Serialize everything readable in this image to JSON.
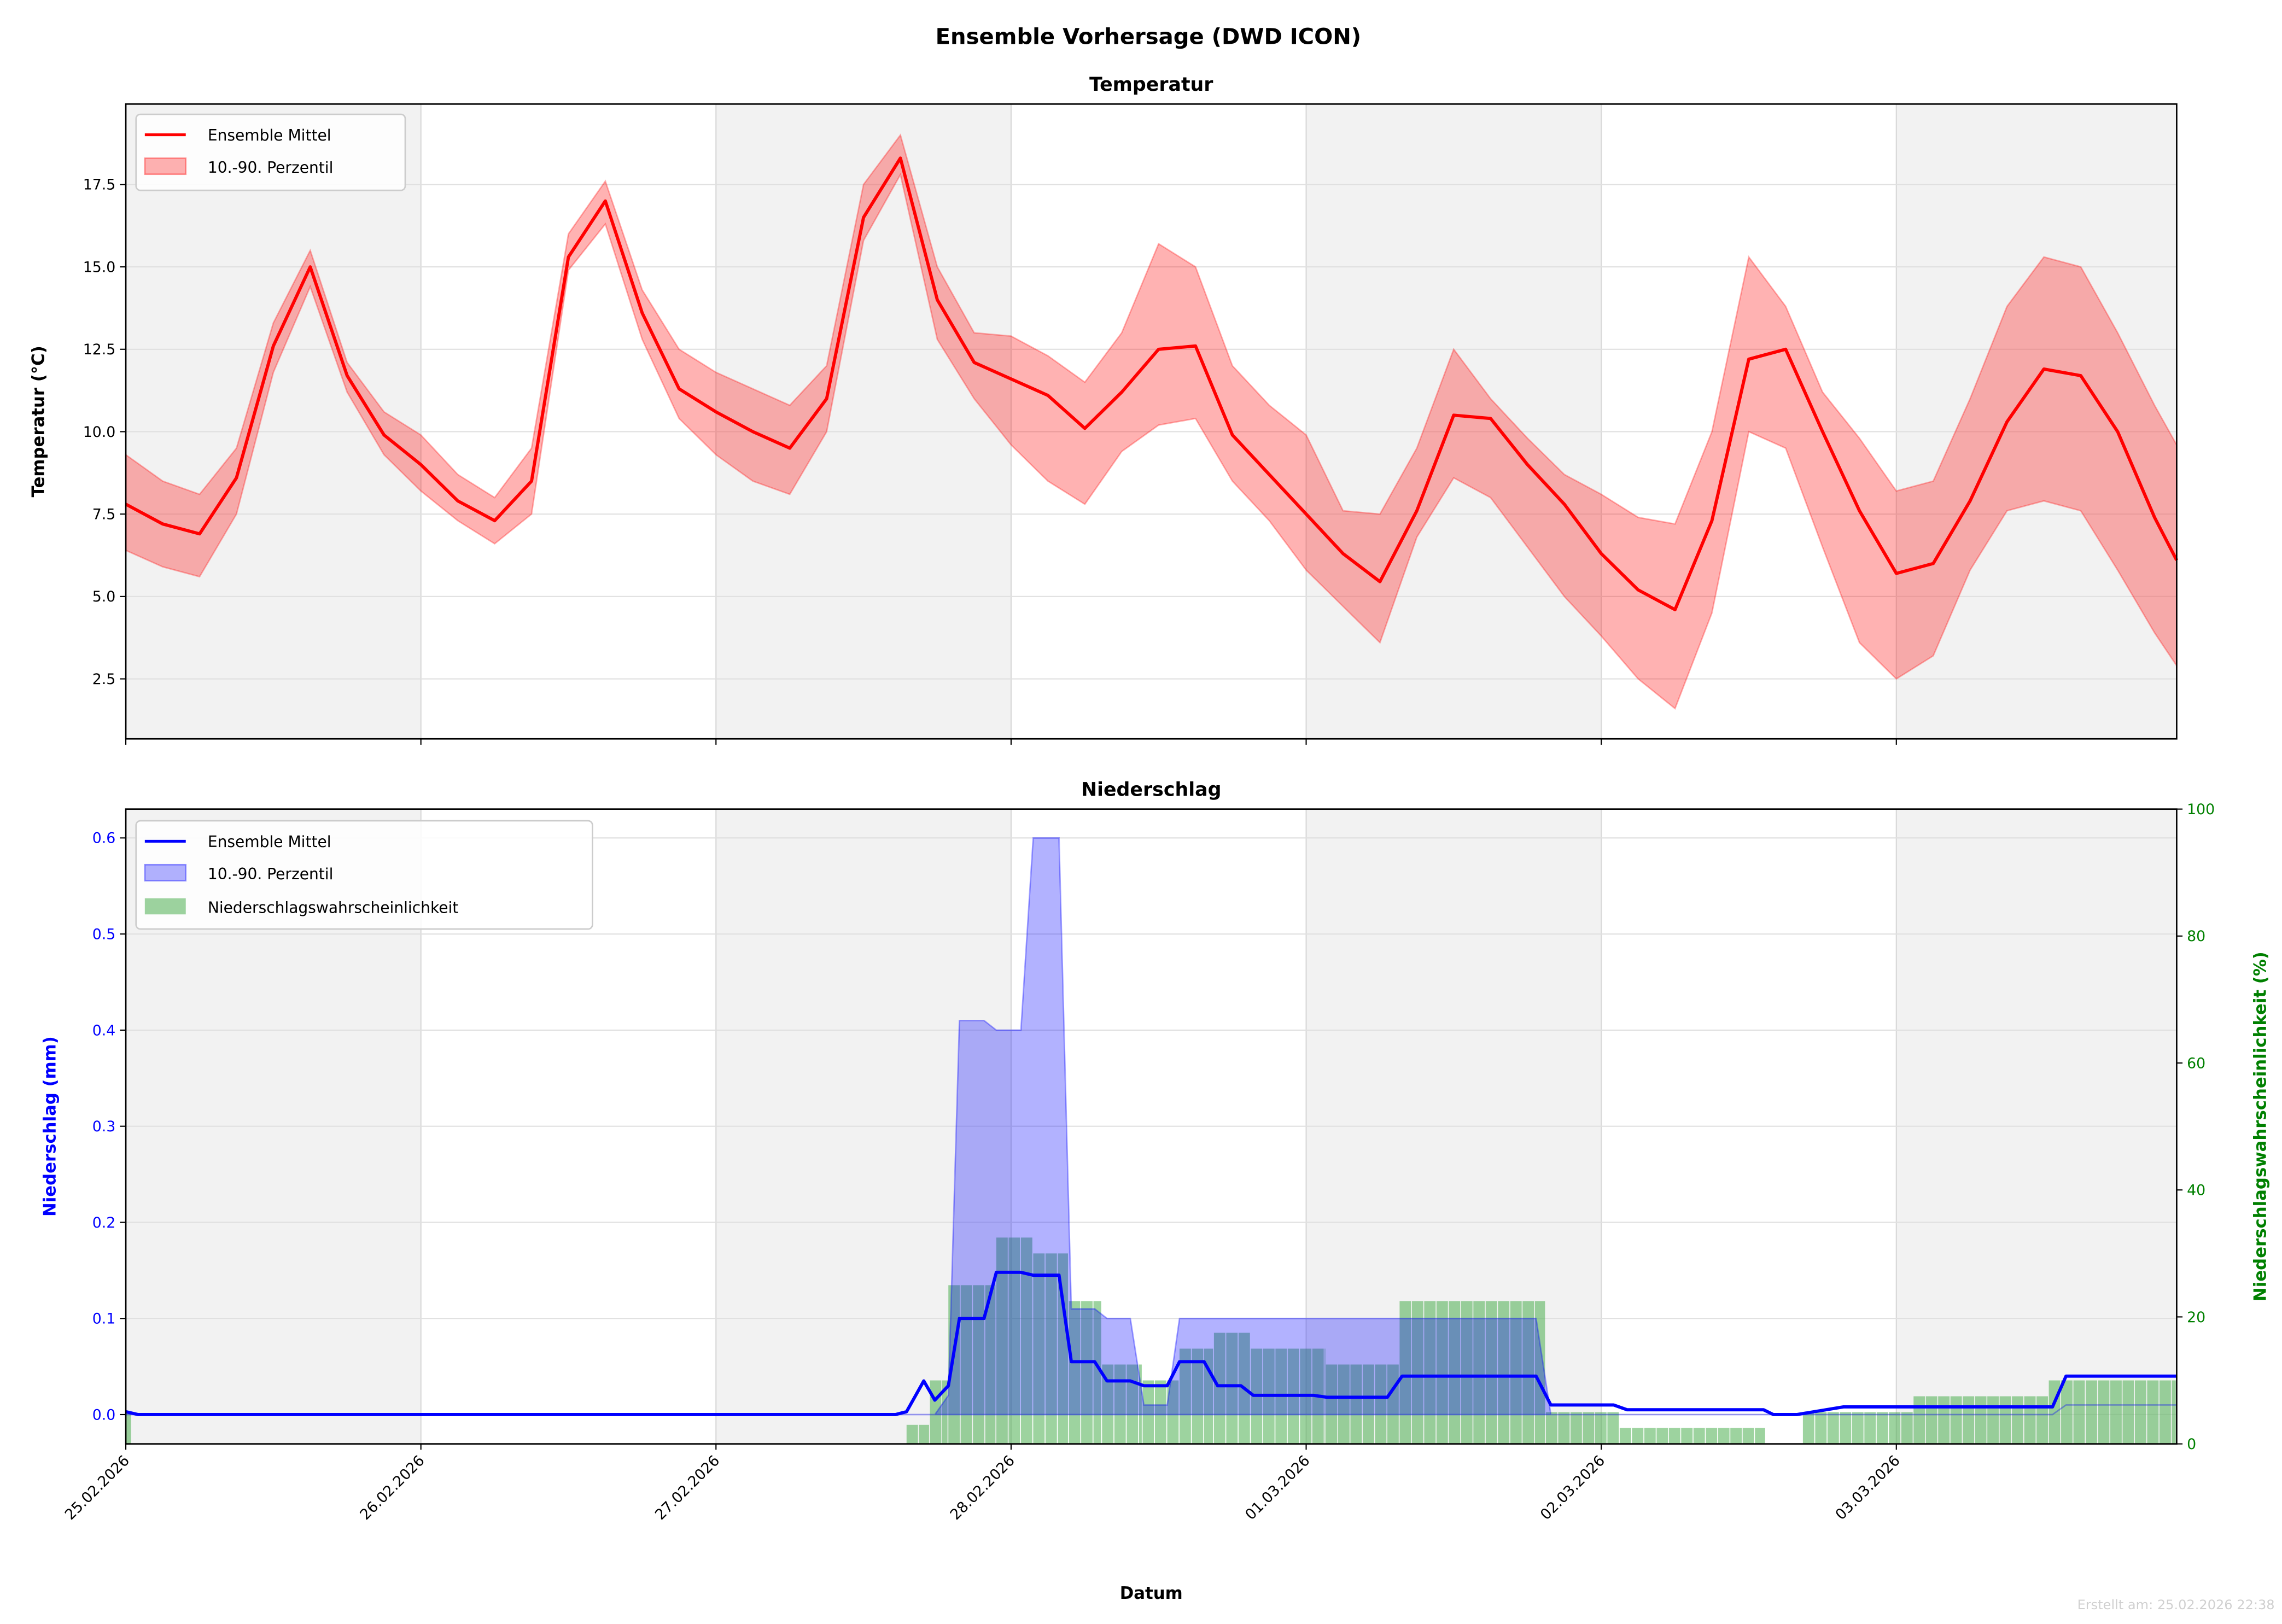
{
  "title": "Ensemble Vorhersage (DWD ICON)",
  "footer": "Erstellt am: 25.02.2026 22:38",
  "chart_data": [
    {
      "type": "line",
      "title": "Temperatur",
      "xlabel": "",
      "ylabel": "Temperatur (°C)",
      "x_unit": "hours since 25.02.2026 00:00",
      "xlim": [
        0,
        166.8
      ],
      "ylim": [
        0.68,
        19.94
      ],
      "yticks": [
        2.5,
        5.0,
        7.5,
        10.0,
        12.5,
        15.0,
        17.5
      ],
      "ytick_labels": [
        "2.5",
        "5.0",
        "7.5",
        "10.0",
        "12.5",
        "15.0",
        "17.5"
      ],
      "grid": true,
      "legend_position": "top-left",
      "colors": {
        "mean": "#ff0000",
        "band": "#ff0000"
      },
      "series": [
        {
          "name": "Ensemble Mittel",
          "x": [
            0,
            3,
            6,
            9,
            12,
            15,
            18,
            21,
            24,
            27,
            30,
            33,
            36,
            39,
            42,
            45,
            48,
            51,
            54,
            57,
            60,
            63,
            66,
            69,
            72,
            75,
            78,
            81,
            84,
            87,
            90,
            93,
            96,
            99,
            102,
            105,
            108,
            111,
            114,
            117,
            120,
            123,
            126,
            129,
            132,
            135,
            138,
            141,
            144,
            147,
            150,
            153,
            156,
            159,
            162,
            165,
            166.8
          ],
          "values": [
            7.8,
            7.2,
            6.9,
            8.6,
            12.6,
            15.0,
            11.7,
            9.9,
            9.0,
            7.9,
            7.3,
            8.5,
            15.3,
            17.0,
            13.6,
            11.3,
            10.6,
            10.0,
            9.5,
            11.0,
            16.5,
            18.3,
            14.0,
            12.1,
            11.6,
            11.1,
            10.1,
            11.2,
            12.5,
            12.6,
            9.9,
            8.7,
            7.5,
            6.3,
            5.45,
            7.6,
            10.5,
            10.4,
            9.0,
            7.8,
            6.3,
            5.2,
            4.6,
            7.3,
            12.2,
            12.5,
            10.0,
            7.6,
            5.7,
            6.0,
            7.9,
            10.3,
            11.9,
            11.7,
            10.0,
            7.4,
            6.1
          ]
        },
        {
          "name": "10.-90. Perzentil",
          "upper": [
            9.3,
            8.5,
            8.1,
            9.5,
            13.3,
            15.5,
            12.1,
            10.6,
            9.9,
            8.7,
            8.0,
            9.5,
            16.0,
            17.6,
            14.3,
            12.5,
            11.8,
            11.3,
            10.8,
            12.0,
            17.5,
            19.0,
            15.0,
            13.0,
            12.9,
            12.3,
            11.5,
            13.0,
            15.7,
            15.0,
            12.0,
            10.8,
            9.9,
            7.6,
            7.5,
            9.5,
            12.5,
            11.0,
            9.8,
            8.7,
            8.1,
            7.4,
            7.2,
            10.0,
            15.3,
            13.8,
            11.2,
            9.8,
            8.2,
            8.5,
            11.0,
            13.8,
            15.3,
            15.0,
            13.0,
            10.8,
            9.6
          ],
          "lower": [
            6.4,
            5.9,
            5.6,
            7.5,
            11.8,
            14.4,
            11.2,
            9.3,
            8.2,
            7.3,
            6.6,
            7.5,
            14.9,
            16.3,
            12.8,
            10.4,
            9.3,
            8.5,
            8.1,
            10.0,
            15.8,
            17.8,
            12.8,
            11.0,
            9.6,
            8.5,
            7.8,
            9.4,
            10.2,
            10.4,
            8.5,
            7.3,
            5.8,
            4.7,
            3.6,
            6.8,
            8.6,
            8.0,
            6.5,
            5.0,
            3.8,
            2.5,
            1.6,
            4.5,
            10.0,
            9.5,
            6.5,
            3.6,
            2.5,
            3.2,
            5.8,
            7.6,
            7.9,
            7.6,
            5.8,
            3.9,
            2.9
          ]
        }
      ]
    },
    {
      "type": "line",
      "title": "Niederschlag",
      "xlabel": "Datum",
      "ylabel": "Niederschlag (mm)",
      "ylabel_right": "Niederschlagswahrscheinlichkeit (%)",
      "x_unit": "hours since 25.02.2026 00:00",
      "xlim": [
        0,
        166.8
      ],
      "ylim": [
        -0.0305,
        0.63
      ],
      "ylim_right": [
        0,
        100
      ],
      "yticks": [
        0.0,
        0.1,
        0.2,
        0.3,
        0.4,
        0.5,
        0.6
      ],
      "ytick_labels": [
        "0.0",
        "0.1",
        "0.2",
        "0.3",
        "0.4",
        "0.5",
        "0.6"
      ],
      "yticks_right": [
        0,
        20,
        40,
        60,
        80,
        100
      ],
      "ytick_labels_right": [
        "0",
        "20",
        "40",
        "60",
        "80",
        "100"
      ],
      "xticks": [
        0,
        24,
        48,
        72,
        96,
        120,
        144
      ],
      "xtick_labels": [
        "25.02.2026",
        "26.02.2026",
        "27.02.2026",
        "28.02.2026",
        "01.03.2026",
        "02.03.2026",
        "03.03.2026"
      ],
      "grid": true,
      "legend_position": "top-left",
      "colors": {
        "mean": "#0000ff",
        "band": "#0000ff",
        "prob": "#4caf50",
        "right_axis": "#008000"
      },
      "series": [
        {
          "name": "Ensemble Mittel",
          "points": [
            [
              0,
              0.003
            ],
            [
              1,
              0
            ],
            [
              62.6,
              0
            ],
            [
              63.5,
              0.003
            ],
            [
              64.9,
              0.035
            ],
            [
              65.8,
              0.015
            ],
            [
              66.9,
              0.03
            ],
            [
              67.8,
              0.1
            ],
            [
              69.8,
              0.1
            ],
            [
              70.8,
              0.148
            ],
            [
              72.8,
              0.148
            ],
            [
              73.8,
              0.145
            ],
            [
              75.9,
              0.145
            ],
            [
              76.9,
              0.055
            ],
            [
              78.8,
              0.055
            ],
            [
              79.8,
              0.035
            ],
            [
              81.7,
              0.035
            ],
            [
              82.8,
              0.03
            ],
            [
              84.7,
              0.03
            ],
            [
              85.7,
              0.055
            ],
            [
              87.7,
              0.055
            ],
            [
              88.8,
              0.03
            ],
            [
              90.7,
              0.03
            ],
            [
              91.7,
              0.02
            ],
            [
              96.6,
              0.02
            ],
            [
              97.7,
              0.018
            ],
            [
              102.6,
              0.018
            ],
            [
              103.8,
              0.04
            ],
            [
              114.7,
              0.04
            ],
            [
              115.9,
              0.01
            ],
            [
              121,
              0.01
            ],
            [
              122.1,
              0.005
            ],
            [
              133.2,
              0.005
            ],
            [
              134,
              0
            ],
            [
              135.9,
              0
            ],
            [
              139.7,
              0.008
            ],
            [
              156.7,
              0.008
            ],
            [
              157.8,
              0.04
            ],
            [
              166.8,
              0.04
            ]
          ]
        },
        {
          "name": "10.-90. Perzentil",
          "upper": [
            [
              0,
              0
            ],
            [
              65.8,
              0
            ],
            [
              66.9,
              0.02
            ],
            [
              67.8,
              0.41
            ],
            [
              69.8,
              0.41
            ],
            [
              70.8,
              0.4
            ],
            [
              72.8,
              0.4
            ],
            [
              73.8,
              0.6
            ],
            [
              75.9,
              0.6
            ],
            [
              76.9,
              0.11
            ],
            [
              78.8,
              0.11
            ],
            [
              79.8,
              0.1
            ],
            [
              81.7,
              0.1
            ],
            [
              82.8,
              0.01
            ],
            [
              84.7,
              0.01
            ],
            [
              85.7,
              0.1
            ],
            [
              114.7,
              0.1
            ],
            [
              115.9,
              0.0
            ],
            [
              156.7,
              0.0
            ],
            [
              157.8,
              0.01
            ],
            [
              166.8,
              0.01
            ]
          ],
          "lower": [
            [
              0,
              0
            ],
            [
              156.7,
              0
            ],
            [
              157.8,
              0.01
            ],
            [
              166.8,
              0.01
            ]
          ]
        },
        {
          "name": "Niederschlagswahrscheinlichkeit",
          "axis": "right",
          "segments_pct": [
            [
              0,
              0.5,
              5
            ],
            [
              63.5,
              65.4,
              3
            ],
            [
              65.4,
              66.9,
              10
            ],
            [
              66.9,
              70.8,
              25
            ],
            [
              70.8,
              73.8,
              32.5
            ],
            [
              73.8,
              76.7,
              30
            ],
            [
              76.7,
              79.4,
              22.5
            ],
            [
              79.4,
              82.7,
              12.5
            ],
            [
              82.7,
              85.7,
              10
            ],
            [
              85.7,
              88.5,
              15
            ],
            [
              88.5,
              91.5,
              17.5
            ],
            [
              91.5,
              97.6,
              15
            ],
            [
              97.6,
              103.6,
              12.5
            ],
            [
              103.6,
              115.5,
              22.5
            ],
            [
              115.5,
              121.5,
              5
            ],
            [
              121.5,
              133.4,
              2.5
            ],
            [
              136.4,
              145.4,
              5
            ],
            [
              145.4,
              156.4,
              7.5
            ],
            [
              156.4,
              166.8,
              10
            ]
          ]
        }
      ]
    }
  ]
}
